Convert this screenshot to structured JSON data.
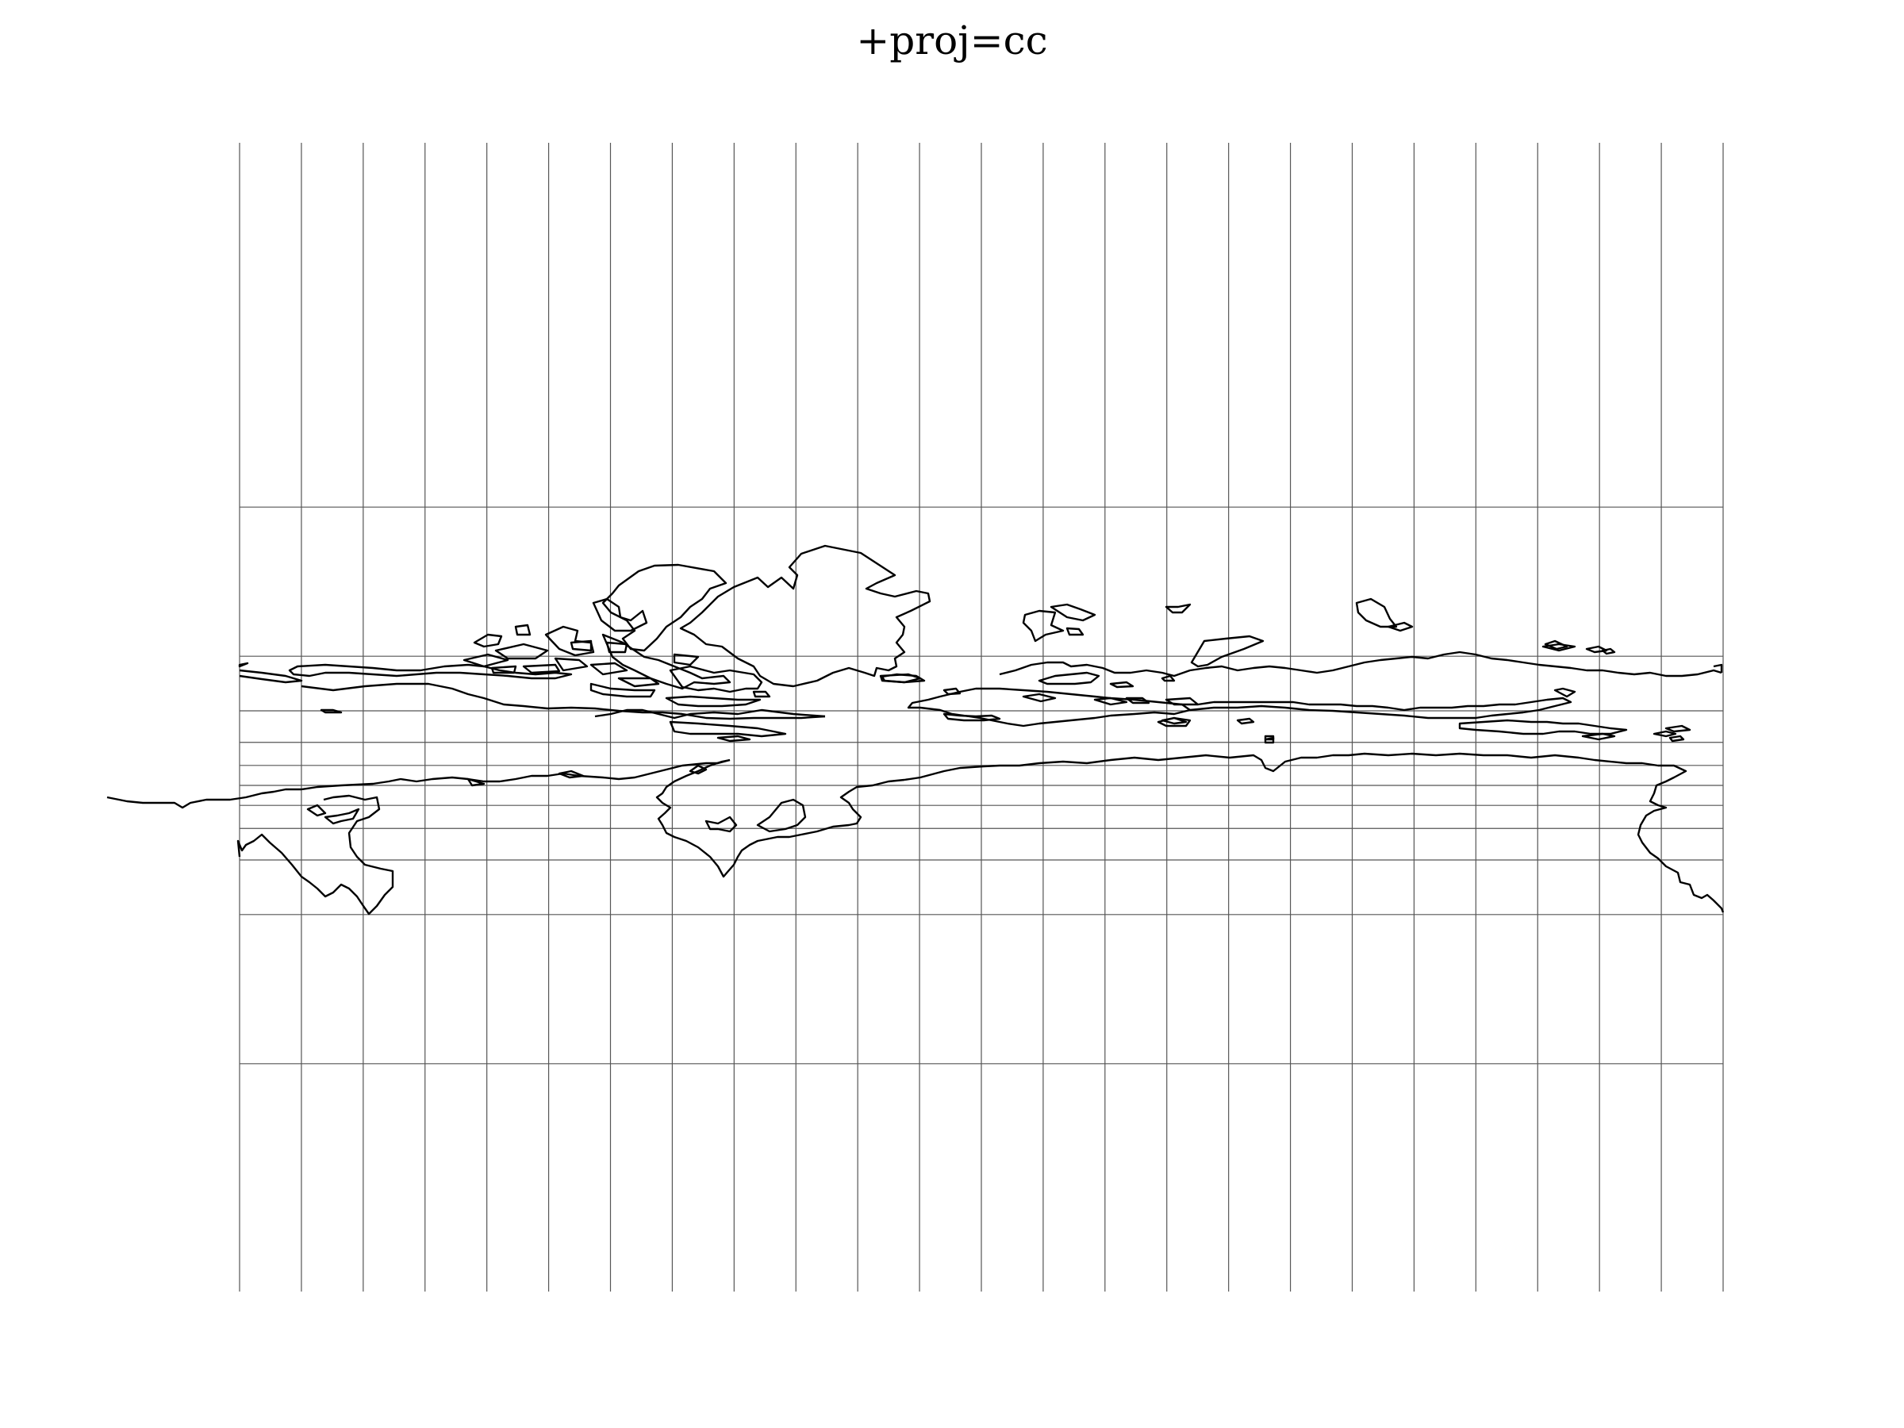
{
  "title": "+proj=cc",
  "colors": {
    "graticule": "#555555",
    "coastline": "#000000",
    "background": "#ffffff"
  },
  "map": {
    "projection": "cc",
    "graticule_meridians_deg": [
      -180,
      -165,
      -150,
      -135,
      -120,
      -105,
      -90,
      -75,
      -60,
      -45,
      -30,
      -15,
      0,
      15,
      30,
      45,
      60,
      75,
      90,
      105,
      120,
      135,
      150,
      165,
      180
    ],
    "graticule_parallels_deg": [
      -75,
      -60,
      -45,
      -30,
      -15,
      0,
      15,
      30,
      45,
      60,
      75
    ]
  }
}
